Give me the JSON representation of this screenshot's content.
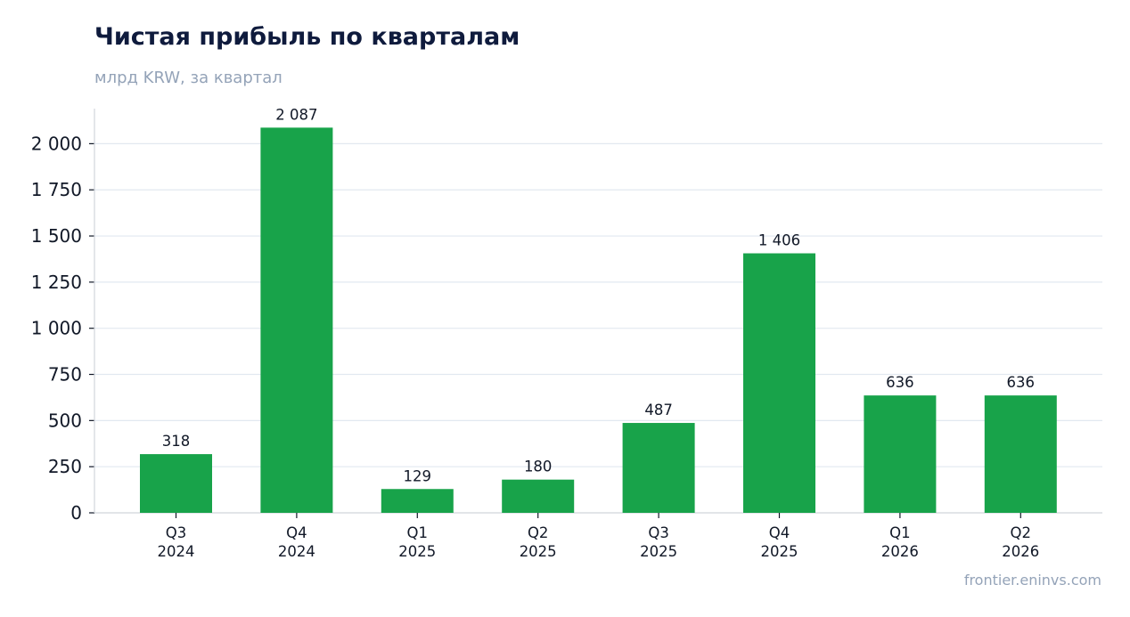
{
  "header": {
    "title": "Чистая прибыль по кварталам",
    "subtitle": "млрд KRW, за квартал"
  },
  "footer": {
    "source": "frontier.eninvs.com"
  },
  "colors": {
    "bar": "#18a34a",
    "grid": "#e2e8f0",
    "axis": "#d1d5db",
    "text": "#111827",
    "title": "#0f1b3d",
    "muted": "#94a3b8"
  },
  "chart_data": {
    "type": "bar",
    "title": "Чистая прибыль по кварталам",
    "subtitle": "млрд KRW, за квартал",
    "categories": [
      [
        "Q3",
        "2024"
      ],
      [
        "Q4",
        "2024"
      ],
      [
        "Q1",
        "2025"
      ],
      [
        "Q2",
        "2025"
      ],
      [
        "Q3",
        "2025"
      ],
      [
        "Q4",
        "2025"
      ],
      [
        "Q1",
        "2026"
      ],
      [
        "Q2",
        "2026"
      ]
    ],
    "values": [
      318,
      2087,
      129,
      180,
      487,
      1406,
      636,
      636
    ],
    "value_labels": [
      "318",
      "2 087",
      "129",
      "180",
      "487",
      "1 406",
      "636",
      "636"
    ],
    "yticks": [
      0,
      250,
      500,
      750,
      1000,
      1250,
      1500,
      1750,
      2000
    ],
    "ytick_labels": [
      "0",
      "250",
      "500",
      "750",
      "1 000",
      "1 250",
      "1 500",
      "1 750",
      "2 000"
    ],
    "ylim": [
      0,
      2190
    ],
    "grid": true,
    "legend": "none"
  }
}
